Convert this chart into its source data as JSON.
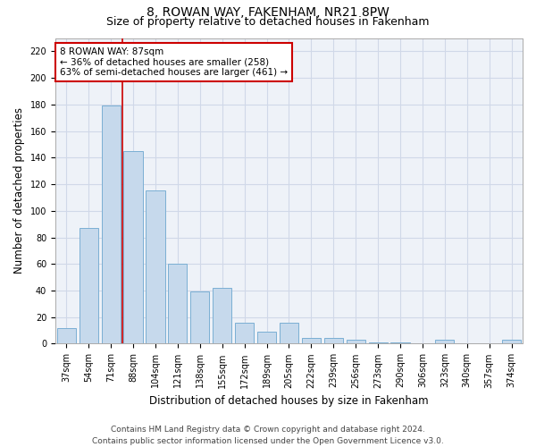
{
  "title": "8, ROWAN WAY, FAKENHAM, NR21 8PW",
  "subtitle": "Size of property relative to detached houses in Fakenham",
  "xlabel": "Distribution of detached houses by size in Fakenham",
  "ylabel": "Number of detached properties",
  "footer_line1": "Contains HM Land Registry data © Crown copyright and database right 2024.",
  "footer_line2": "Contains public sector information licensed under the Open Government Licence v3.0.",
  "categories": [
    "37sqm",
    "54sqm",
    "71sqm",
    "88sqm",
    "104sqm",
    "121sqm",
    "138sqm",
    "155sqm",
    "172sqm",
    "189sqm",
    "205sqm",
    "222sqm",
    "239sqm",
    "256sqm",
    "273sqm",
    "290sqm",
    "306sqm",
    "323sqm",
    "340sqm",
    "357sqm",
    "374sqm"
  ],
  "values": [
    12,
    87,
    179,
    145,
    115,
    60,
    39,
    42,
    16,
    9,
    16,
    4,
    4,
    3,
    1,
    1,
    0,
    3,
    0,
    0,
    3
  ],
  "bar_color": "#c6d9ec",
  "bar_edge_color": "#7bafd4",
  "property_line_bin": 2,
  "annotation_title": "8 ROWAN WAY: 87sqm",
  "annotation_line1": "← 36% of detached houses are smaller (258)",
  "annotation_line2": "63% of semi-detached houses are larger (461) →",
  "annotation_box_color": "#ffffff",
  "annotation_box_edge_color": "#cc0000",
  "red_line_color": "#cc0000",
  "ylim": [
    0,
    230
  ],
  "yticks": [
    0,
    20,
    40,
    60,
    80,
    100,
    120,
    140,
    160,
    180,
    200,
    220
  ],
  "grid_color": "#d0d8e8",
  "background_color": "#eef2f8",
  "title_fontsize": 10,
  "subtitle_fontsize": 9,
  "axis_label_fontsize": 8.5,
  "tick_fontsize": 7,
  "annotation_fontsize": 7.5,
  "footer_fontsize": 6.5
}
